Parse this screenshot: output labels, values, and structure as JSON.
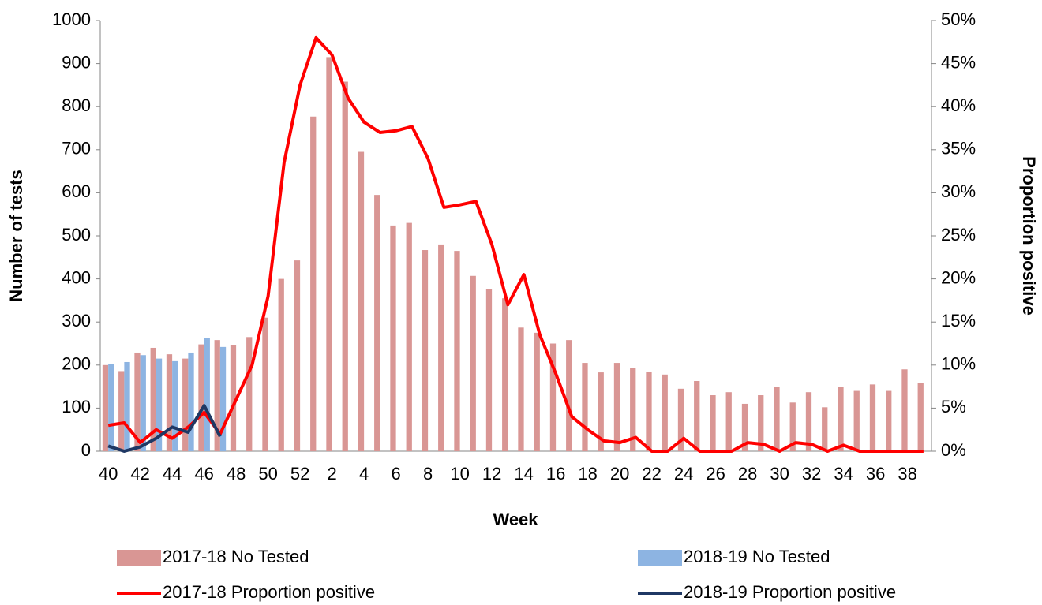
{
  "chart_data": {
    "type": "bar-line",
    "x_label": "Week",
    "y_label": "Number of tests",
    "y2_label": "Proportion positive",
    "categories": [
      "40",
      null,
      "42",
      null,
      "44",
      null,
      "46",
      null,
      "48",
      null,
      "50",
      null,
      "52",
      null,
      "2",
      null,
      "4",
      null,
      "6",
      null,
      "8",
      null,
      "10",
      null,
      "12",
      null,
      "14",
      null,
      "16",
      null,
      "18",
      null,
      "20",
      null,
      "22",
      null,
      "24",
      null,
      "26",
      null,
      "28",
      null,
      "30",
      null,
      "32",
      null,
      "34",
      null,
      "36",
      null,
      "38",
      null
    ],
    "ylim": [
      0,
      1000
    ],
    "yticks": [
      0,
      100,
      200,
      300,
      400,
      500,
      600,
      700,
      800,
      900,
      1000
    ],
    "y2lim": [
      0,
      50
    ],
    "y2ticks": [
      {
        "value": 0,
        "label": "0%"
      },
      {
        "value": 5,
        "label": "5%"
      },
      {
        "value": 10,
        "label": "10%"
      },
      {
        "value": 15,
        "label": "15%"
      },
      {
        "value": 20,
        "label": "20%"
      },
      {
        "value": 25,
        "label": "25%"
      },
      {
        "value": 30,
        "label": "30%"
      },
      {
        "value": 35,
        "label": "35%"
      },
      {
        "value": 40,
        "label": "40%"
      },
      {
        "value": 45,
        "label": "45%"
      },
      {
        "value": 50,
        "label": "50%"
      }
    ],
    "series": [
      {
        "name": "2017-18 No Tested",
        "kind": "bar",
        "color": "#d99694",
        "values": [
          200,
          186,
          229,
          240,
          225,
          215,
          248,
          258,
          246,
          265,
          310,
          400,
          443,
          777,
          915,
          858,
          695,
          595,
          524,
          530,
          467,
          480,
          465,
          407,
          377,
          355,
          287,
          275,
          250,
          258,
          205,
          183,
          205,
          193,
          185,
          178,
          145,
          163,
          130,
          137,
          110,
          130,
          150,
          113,
          137,
          102,
          149,
          140,
          155,
          140,
          190,
          158
        ]
      },
      {
        "name": "2018-19 No Tested",
        "kind": "bar",
        "color": "#8db4e2",
        "values": [
          203,
          207,
          223,
          215,
          209,
          229,
          263,
          242,
          null,
          null,
          null,
          null,
          null,
          null,
          null,
          null,
          null,
          null,
          null,
          null,
          null,
          null,
          null,
          null,
          null,
          null,
          null,
          null,
          null,
          null,
          null,
          null,
          null,
          null,
          null,
          null,
          null,
          null,
          null,
          null,
          null,
          null,
          null,
          null,
          null,
          null,
          null,
          null,
          null,
          null,
          null,
          null
        ]
      },
      {
        "name": "2017-18 Proportion positive",
        "kind": "line",
        "axis": "y2",
        "color": "#ff0000",
        "values": [
          3.0,
          3.3,
          1.0,
          2.5,
          1.5,
          2.8,
          4.5,
          2.0,
          6.0,
          10.0,
          18.0,
          33.5,
          42.5,
          48.0,
          46.0,
          41.0,
          38.2,
          37.0,
          37.2,
          37.7,
          34.0,
          28.3,
          28.6,
          29.0,
          24.0,
          17.0,
          20.5,
          13.5,
          9.0,
          4.0,
          2.5,
          1.2,
          1.0,
          1.6,
          0,
          0,
          1.5,
          0,
          0,
          0,
          1.0,
          0.8,
          0,
          1.0,
          0.8,
          0,
          0.7,
          0,
          0,
          0,
          0,
          0
        ]
      },
      {
        "name": "2018-19 Proportion positive",
        "kind": "line",
        "axis": "y2",
        "color": "#1f3864",
        "values": [
          0.6,
          0,
          0.5,
          1.5,
          2.8,
          2.2,
          5.3,
          1.7,
          null,
          null,
          null,
          null,
          null,
          null,
          null,
          null,
          null,
          null,
          null,
          null,
          null,
          null,
          null,
          null,
          null,
          null,
          null,
          null,
          null,
          null,
          null,
          null,
          null,
          null,
          null,
          null,
          null,
          null,
          null,
          null,
          null,
          null,
          null,
          null,
          null,
          null,
          null,
          null,
          null,
          null,
          null,
          null
        ]
      }
    ]
  }
}
